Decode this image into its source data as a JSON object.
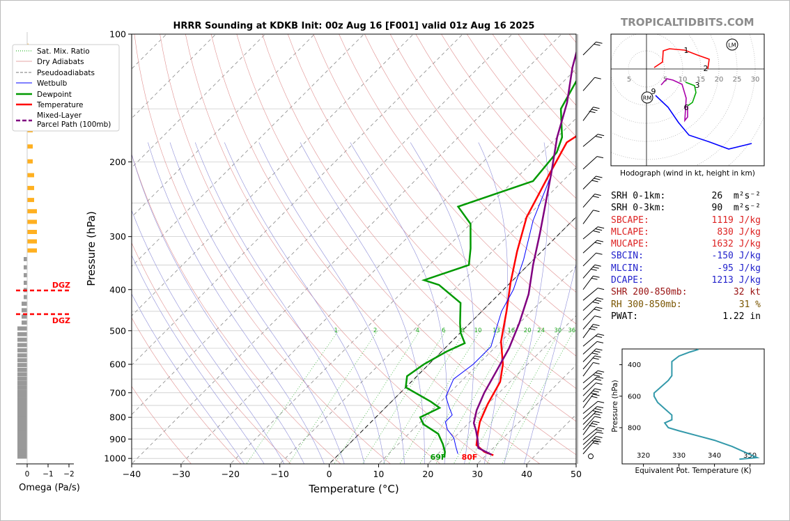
{
  "watermark": "TROPICALTIDBITS.COM",
  "chart_data": {
    "type": "line",
    "title": "HRRR Sounding at KDKB Init: 00z Aug 16 [F001] valid 01z Aug 16 2025",
    "xlabel": "Temperature (°C)",
    "ylabel": "Pressure (hPa)",
    "xlim": [
      -40,
      50
    ],
    "ylim": [
      1030,
      100
    ],
    "y_scale": "log",
    "x_ticks": [
      "−40",
      "−30",
      "−20",
      "−10",
      "0",
      "10",
      "20",
      "30",
      "40",
      "50"
    ],
    "y_ticks": [
      "100",
      "200",
      "300",
      "400",
      "500",
      "600",
      "700",
      "800",
      "900",
      "1000"
    ],
    "legend": {
      "placement": "top-left",
      "entries": [
        "Sat. Mix. Ratio",
        "Dry Adiabats",
        "Pseudoadiabats",
        "Wetbulb",
        "Dewpoint",
        "Temperature",
        "Mixed-Layer\nParcel Path (100mb)"
      ]
    },
    "mixing_ratio_labels": [
      "1",
      "2",
      "4",
      "6",
      "8",
      "10",
      "13",
      "16",
      "20",
      "24",
      "30",
      "36"
    ],
    "surface_labels": {
      "dewpoint": "69F",
      "temperature": "80F"
    },
    "series": [
      {
        "name": "Temperature",
        "color": "#ff0000",
        "points": [
          [
            31.5,
            983
          ],
          [
            29,
            965
          ],
          [
            26,
            930
          ],
          [
            24,
            875
          ],
          [
            22,
            820
          ],
          [
            20,
            745
          ],
          [
            18,
            660
          ],
          [
            15,
            600
          ],
          [
            10,
            530
          ],
          [
            5,
            450
          ],
          [
            0,
            385
          ],
          [
            -5,
            325
          ],
          [
            -10,
            270
          ],
          [
            -14,
            215
          ],
          [
            -17,
            180
          ],
          [
            -14,
            155
          ],
          [
            -8,
            125
          ],
          [
            -2,
            100
          ]
        ]
      },
      {
        "name": "Dewpoint",
        "color": "#009900",
        "points": [
          [
            22,
            995
          ],
          [
            21,
            965
          ],
          [
            19,
            925
          ],
          [
            16,
            875
          ],
          [
            11,
            830
          ],
          [
            9,
            800
          ],
          [
            11,
            760
          ],
          [
            8,
            735
          ],
          [
            0,
            680
          ],
          [
            -2,
            640
          ],
          [
            -1,
            600
          ],
          [
            1,
            560
          ],
          [
            3,
            535
          ],
          [
            0,
            505
          ],
          [
            -2,
            480
          ],
          [
            -6,
            430
          ],
          [
            -14,
            390
          ],
          [
            -18,
            380
          ],
          [
            -12,
            350
          ],
          [
            -15,
            320
          ],
          [
            -20,
            280
          ],
          [
            -26,
            255
          ],
          [
            -16,
            222
          ],
          [
            -17,
            190
          ],
          [
            -19,
            175
          ],
          [
            -25,
            150
          ],
          [
            -28,
            125
          ],
          [
            -28,
            100
          ]
        ]
      },
      {
        "name": "Wetbulb",
        "color": "#0000ff",
        "points": [
          [
            24,
            975
          ],
          [
            22,
            935
          ],
          [
            20,
            895
          ],
          [
            17,
            855
          ],
          [
            15,
            820
          ],
          [
            15,
            790
          ],
          [
            13,
            760
          ],
          [
            10,
            715
          ],
          [
            8,
            650
          ],
          [
            9,
            600
          ],
          [
            9,
            545
          ],
          [
            7,
            505
          ],
          [
            4,
            450
          ],
          [
            2,
            400
          ],
          [
            -2,
            340
          ],
          [
            -8,
            275
          ],
          [
            -13,
            220
          ]
        ]
      },
      {
        "name": "Mixed-Layer\nParcel Path (100mb)",
        "color": "#800080",
        "points": [
          [
            31,
            980
          ],
          [
            27,
            945
          ],
          [
            25,
            900
          ],
          [
            23,
            860
          ],
          [
            21,
            825
          ],
          [
            19,
            770
          ],
          [
            17,
            700
          ],
          [
            15,
            620
          ],
          [
            13,
            550
          ],
          [
            10,
            480
          ],
          [
            6,
            410
          ],
          [
            1,
            350
          ],
          [
            -4,
            295
          ],
          [
            -9,
            250
          ],
          [
            -14,
            212
          ],
          [
            -20,
            175
          ],
          [
            -25,
            145
          ],
          [
            -31,
            120
          ],
          [
            -36,
            100
          ]
        ]
      }
    ],
    "wind_barbs_count": 38
  },
  "omega": {
    "xlabel": "Omega (Pa/s)",
    "x_ticks": [
      "0",
      "−1",
      "−2"
    ],
    "dgz_label": "DGZ"
  },
  "hodograph": {
    "caption": "Hodograph (wind in kt, height in km)",
    "ring_labels": [
      "5",
      "5",
      "10",
      "15",
      "20",
      "25",
      "30"
    ],
    "height_labels": [
      "1",
      "2",
      "3",
      "6",
      "9"
    ],
    "markers": {
      "left_mover": "LM",
      "right_mover": "RM"
    }
  },
  "stats": {
    "rows": [
      {
        "label": "SRH 0-1km:",
        "value": "26",
        "unit": "m²s⁻²",
        "color": "#000000"
      },
      {
        "label": "SRH 0-3km:",
        "value": "90",
        "unit": "m²s⁻²",
        "color": "#000000"
      },
      {
        "label": "SBCAPE:",
        "value": "1119 J/kg",
        "color": "#dd2222"
      },
      {
        "label": "MLCAPE:",
        "value": "830 J/kg",
        "color": "#dd2222"
      },
      {
        "label": "MUCAPE:",
        "value": "1632 J/kg",
        "color": "#dd2222"
      },
      {
        "label": "SBCIN:",
        "value": "-150 J/kg",
        "color": "#2222cc"
      },
      {
        "label": "MLCIN:",
        "value": "-95 J/kg",
        "color": "#2222cc"
      },
      {
        "label": "DCAPE:",
        "value": "1213 J/kg",
        "color": "#2222cc"
      },
      {
        "label": "SHR 200-850mb:",
        "value": "32 kt",
        "color": "#991111"
      },
      {
        "label": "RH 300-850mb:",
        "value": "31 %",
        "color": "#7a5500"
      },
      {
        "label": "PWAT:",
        "value": "1.22 in",
        "color": "#000000"
      }
    ]
  },
  "theta_e": {
    "xlabel": "Equivalent Pot. Temperature (K)",
    "ylabel": "Pressure (hPa)",
    "x_ticks": [
      "320",
      "330",
      "340",
      "350"
    ],
    "y_ticks": [
      "400",
      "600",
      "800"
    ]
  }
}
